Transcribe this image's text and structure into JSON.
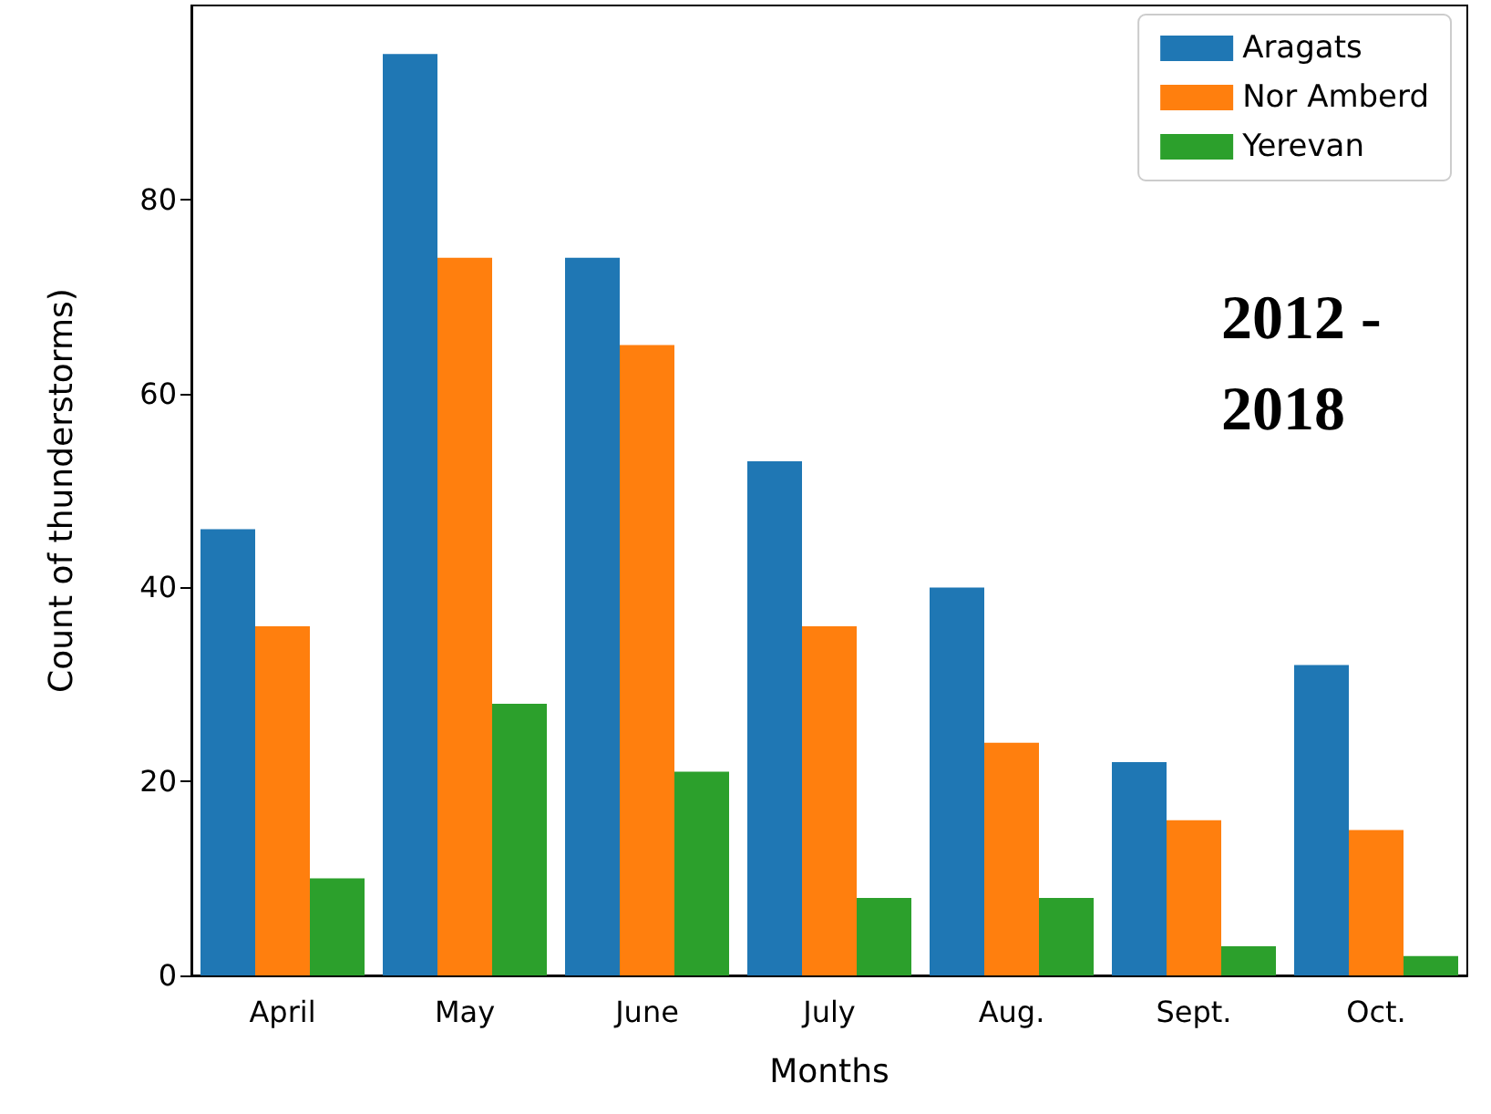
{
  "chart_data": {
    "type": "bar",
    "xlabel": "Months",
    "ylabel": "Count of thunderstorms)",
    "categories": [
      "April",
      "May",
      "June",
      "July",
      "Aug.",
      "Sept.",
      "Oct."
    ],
    "series": [
      {
        "name": "Aragats",
        "color": "#1f77b4",
        "values": [
          46,
          95,
          74,
          53,
          40,
          22,
          32
        ]
      },
      {
        "name": "Nor Amberd",
        "color": "#ff7f0e",
        "values": [
          36,
          74,
          65,
          36,
          24,
          16,
          15
        ]
      },
      {
        "name": "Yerevan",
        "color": "#2ca02c",
        "values": [
          10,
          28,
          21,
          8,
          8,
          3,
          2
        ]
      }
    ],
    "ylim": [
      0,
      100
    ],
    "yticks": [
      0,
      20,
      40,
      60,
      80
    ],
    "grid": false,
    "legend": "top right",
    "annotations": [
      "2012 - 2018"
    ]
  }
}
